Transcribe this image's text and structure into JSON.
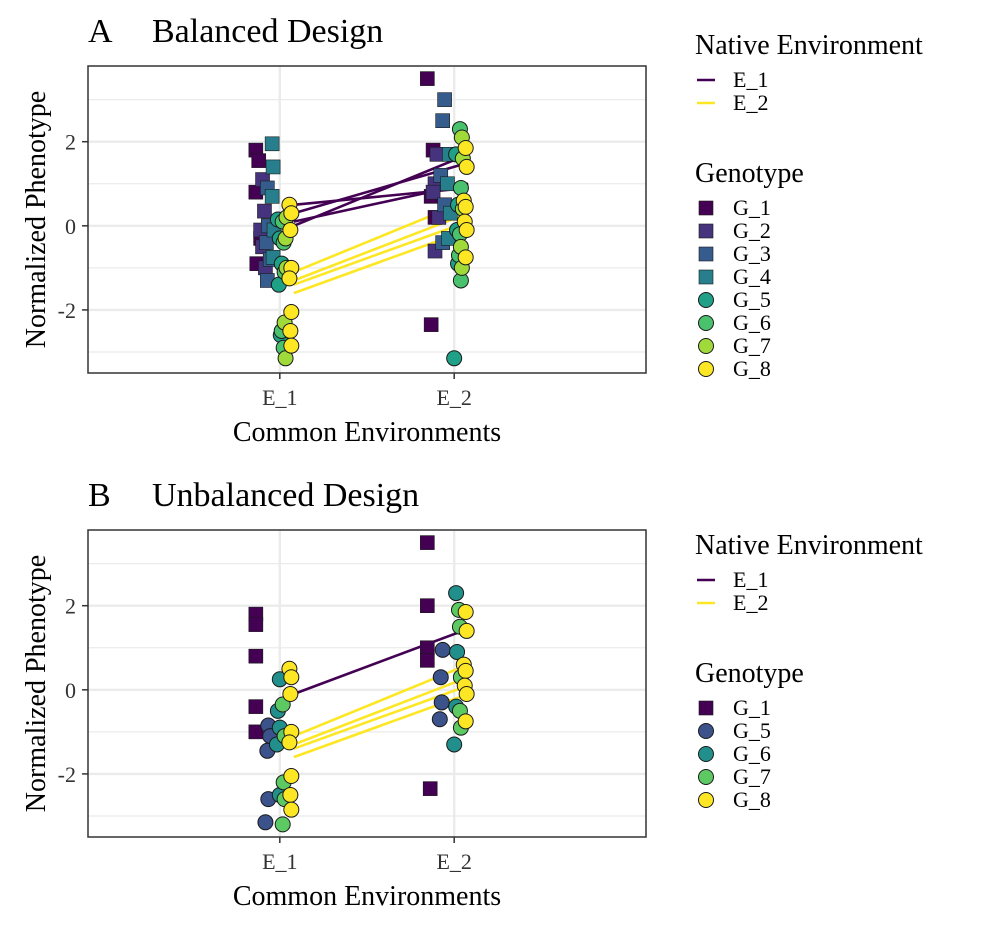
{
  "chart_data": [
    {
      "panel": "A",
      "title": "Balanced Design",
      "type": "scatter",
      "xlabel": "Common Environments",
      "ylabel": "Normalized Phenotype",
      "categories": [
        "E_1",
        "E_2"
      ],
      "ylim": [
        -3.5,
        3.8
      ],
      "yticks": [
        -2,
        0,
        2
      ],
      "grid": true,
      "legends": [
        {
          "title": "Native Environment",
          "entries": [
            {
              "label": "E_1",
              "color": "#440154",
              "kind": "line"
            },
            {
              "label": "E_2",
              "color": "#FDE725",
              "kind": "line"
            }
          ]
        },
        {
          "title": "Genotype",
          "entries": [
            {
              "label": "G_1",
              "color": "#440154",
              "shape": "square"
            },
            {
              "label": "G_2",
              "color": "#46337E",
              "shape": "square"
            },
            {
              "label": "G_3",
              "color": "#365C8D",
              "shape": "square"
            },
            {
              "label": "G_4",
              "color": "#277F8E",
              "shape": "square"
            },
            {
              "label": "G_5",
              "color": "#1FA187",
              "shape": "circle"
            },
            {
              "label": "G_6",
              "color": "#4AC16D",
              "shape": "circle"
            },
            {
              "label": "G_7",
              "color": "#9FDA3A",
              "shape": "circle"
            },
            {
              "label": "G_8",
              "color": "#FDE725",
              "shape": "circle"
            }
          ]
        }
      ],
      "lines": [
        {
          "native": "E_1",
          "color": "#440154",
          "y": [
            0.0,
            1.7
          ]
        },
        {
          "native": "E_1",
          "color": "#440154",
          "y": [
            0.1,
            1.0
          ]
        },
        {
          "native": "E_1",
          "color": "#440154",
          "y": [
            0.3,
            1.5
          ]
        },
        {
          "native": "E_1",
          "color": "#440154",
          "y": [
            0.5,
            0.9
          ]
        },
        {
          "native": "E_2",
          "color": "#FDE725",
          "y": [
            -1.1,
            0.6
          ]
        },
        {
          "native": "E_2",
          "color": "#FDE725",
          "y": [
            -1.3,
            0.3
          ]
        },
        {
          "native": "E_2",
          "color": "#FDE725",
          "y": [
            -1.4,
            0.1
          ]
        },
        {
          "native": "E_2",
          "color": "#FDE725",
          "y": [
            -1.6,
            -0.1
          ]
        }
      ],
      "series": [
        {
          "name": "G_1",
          "values": [
            [
              -0.25,
              1.8
            ],
            [
              -0.22,
              1.55
            ],
            [
              -0.25,
              0.8
            ],
            [
              -0.2,
              -0.3
            ],
            [
              -0.24,
              -0.9
            ],
            [
              -0.24,
              -2.35
            ],
            [
              -0.28,
              3.5
            ],
            [
              -0.22,
              1.8
            ],
            [
              -0.24,
              0.7
            ],
            [
              -0.2,
              0.2
            ]
          ]
        },
        {
          "name": "G_2",
          "values": [
            [
              -0.18,
              1.1
            ],
            [
              -0.16,
              0.35
            ],
            [
              -0.2,
              -0.1
            ],
            [
              -0.18,
              -0.5
            ],
            [
              -0.15,
              -1.0
            ],
            [
              -0.2,
              1.0
            ],
            [
              -0.18,
              1.7
            ],
            [
              -0.22,
              0.8
            ],
            [
              -0.16,
              0.2
            ],
            [
              -0.2,
              -0.6
            ]
          ]
        },
        {
          "name": "G_3",
          "values": [
            [
              -0.13,
              0.9
            ],
            [
              -0.12,
              0.0
            ],
            [
              -0.14,
              -0.4
            ],
            [
              -0.1,
              -0.8
            ],
            [
              -0.13,
              -1.3
            ],
            [
              -0.1,
              3.0
            ],
            [
              -0.12,
              2.5
            ],
            [
              -0.14,
              1.2
            ],
            [
              -0.1,
              0.5
            ],
            [
              -0.12,
              -0.4
            ]
          ]
        },
        {
          "name": "G_4",
          "values": [
            [
              -0.08,
              1.95
            ],
            [
              -0.07,
              1.4
            ],
            [
              -0.08,
              0.7
            ],
            [
              -0.06,
              -0.1
            ],
            [
              -0.07,
              -0.75
            ],
            [
              -0.05,
              1.7
            ],
            [
              -0.07,
              1.0
            ],
            [
              -0.04,
              0.3
            ],
            [
              -0.06,
              -0.3
            ]
          ]
        },
        {
          "name": "G_5",
          "values": [
            [
              -0.02,
              0.15
            ],
            [
              0.0,
              -0.3
            ],
            [
              0.02,
              -0.9
            ],
            [
              -0.01,
              -1.4
            ],
            [
              0.01,
              -2.6
            ],
            [
              0.0,
              -3.15
            ],
            [
              0.02,
              1.7
            ],
            [
              0.04,
              0.5
            ],
            [
              0.03,
              -0.1
            ],
            [
              0.04,
              -0.9
            ]
          ]
        },
        {
          "name": "G_6",
          "values": [
            [
              0.03,
              0.1
            ],
            [
              0.04,
              -0.4
            ],
            [
              0.05,
              -1.1
            ],
            [
              0.02,
              -2.5
            ],
            [
              0.04,
              -2.9
            ],
            [
              0.06,
              2.3
            ],
            [
              0.07,
              0.9
            ],
            [
              0.06,
              -0.2
            ],
            [
              0.05,
              -0.7
            ],
            [
              0.07,
              -1.3
            ]
          ]
        },
        {
          "name": "G_7",
          "values": [
            [
              0.07,
              0.2
            ],
            [
              0.06,
              -0.3
            ],
            [
              0.07,
              -1.0
            ],
            [
              0.05,
              -2.3
            ],
            [
              0.06,
              -3.15
            ],
            [
              0.08,
              2.1
            ],
            [
              0.09,
              1.6
            ],
            [
              0.09,
              0.4
            ],
            [
              0.07,
              -0.5
            ],
            [
              0.08,
              -1.0
            ]
          ]
        },
        {
          "name": "G_8",
          "values": [
            [
              0.1,
              0.5
            ],
            [
              0.12,
              0.3
            ],
            [
              0.11,
              -0.1
            ],
            [
              0.12,
              -1.0
            ],
            [
              0.1,
              -1.25
            ],
            [
              0.12,
              -2.05
            ],
            [
              0.11,
              -2.5
            ],
            [
              0.12,
              -2.85
            ],
            [
              0.12,
              1.85
            ],
            [
              0.13,
              1.4
            ],
            [
              0.1,
              0.6
            ],
            [
              0.12,
              0.45
            ],
            [
              0.11,
              0.1
            ],
            [
              0.13,
              -0.1
            ],
            [
              0.12,
              -0.75
            ]
          ]
        }
      ]
    },
    {
      "panel": "B",
      "title": "Unbalanced Design",
      "type": "scatter",
      "xlabel": "Common Environments",
      "ylabel": "Normalized Phenotype",
      "categories": [
        "E_1",
        "E_2"
      ],
      "ylim": [
        -3.5,
        3.8
      ],
      "yticks": [
        -2,
        0,
        2
      ],
      "grid": true,
      "legends": [
        {
          "title": "Native Environment",
          "entries": [
            {
              "label": "E_1",
              "color": "#440154",
              "kind": "line"
            },
            {
              "label": "E_2",
              "color": "#FDE725",
              "kind": "line"
            }
          ]
        },
        {
          "title": "Genotype",
          "entries": [
            {
              "label": "G_1",
              "color": "#440154",
              "shape": "square"
            },
            {
              "label": "G_5",
              "color": "#3B528B",
              "shape": "circle"
            },
            {
              "label": "G_6",
              "color": "#21908C",
              "shape": "circle"
            },
            {
              "label": "G_7",
              "color": "#5DC963",
              "shape": "circle"
            },
            {
              "label": "G_8",
              "color": "#FDE725",
              "shape": "circle"
            }
          ]
        }
      ],
      "lines": [
        {
          "native": "E_1",
          "color": "#440154",
          "y": [
            -0.1,
            1.45
          ]
        },
        {
          "native": "E_2",
          "color": "#FDE725",
          "y": [
            -1.1,
            0.6
          ]
        },
        {
          "native": "E_2",
          "color": "#FDE725",
          "y": [
            -1.3,
            0.3
          ]
        },
        {
          "native": "E_2",
          "color": "#FDE725",
          "y": [
            -1.4,
            0.1
          ]
        },
        {
          "native": "E_2",
          "color": "#FDE725",
          "y": [
            -1.6,
            -0.1
          ]
        }
      ],
      "series": [
        {
          "name": "G_1",
          "values": [
            [
              -0.25,
              1.8
            ],
            [
              -0.25,
              1.55
            ],
            [
              -0.25,
              0.8
            ],
            [
              -0.25,
              -0.4
            ],
            [
              -0.25,
              -1.0
            ],
            [
              -0.25,
              -2.35
            ],
            [
              -0.28,
              3.5
            ],
            [
              -0.28,
              2.0
            ],
            [
              -0.28,
              1.0
            ],
            [
              -0.28,
              0.7
            ]
          ]
        },
        {
          "name": "G_5",
          "values": [
            [
              -0.12,
              -0.85
            ],
            [
              -0.1,
              -1.1
            ],
            [
              -0.13,
              -1.45
            ],
            [
              -0.12,
              -2.6
            ],
            [
              -0.15,
              -3.15
            ],
            [
              -0.12,
              0.95
            ],
            [
              -0.14,
              0.3
            ],
            [
              -0.13,
              -0.3
            ],
            [
              -0.15,
              -0.7
            ]
          ]
        },
        {
          "name": "G_6",
          "values": [
            [
              0.0,
              0.25
            ],
            [
              -0.02,
              -0.5
            ],
            [
              0.0,
              -0.9
            ],
            [
              -0.03,
              -1.3
            ],
            [
              0.0,
              -2.5
            ],
            [
              0.02,
              2.3
            ],
            [
              0.03,
              0.9
            ],
            [
              0.02,
              -0.4
            ],
            [
              0.0,
              -1.3
            ]
          ]
        },
        {
          "name": "G_7",
          "values": [
            [
              0.03,
              -0.35
            ],
            [
              0.05,
              -1.1
            ],
            [
              0.04,
              -2.2
            ],
            [
              0.05,
              -2.6
            ],
            [
              0.03,
              -3.2
            ],
            [
              0.05,
              1.9
            ],
            [
              0.06,
              1.5
            ],
            [
              0.07,
              0.3
            ],
            [
              0.06,
              -0.5
            ],
            [
              0.07,
              -0.9
            ]
          ]
        },
        {
          "name": "G_8",
          "values": [
            [
              0.1,
              0.5
            ],
            [
              0.12,
              0.3
            ],
            [
              0.11,
              -0.1
            ],
            [
              0.12,
              -1.0
            ],
            [
              0.1,
              -1.25
            ],
            [
              0.12,
              -2.05
            ],
            [
              0.11,
              -2.5
            ],
            [
              0.12,
              -2.85
            ],
            [
              0.12,
              1.85
            ],
            [
              0.13,
              1.4
            ],
            [
              0.1,
              0.6
            ],
            [
              0.12,
              0.45
            ],
            [
              0.11,
              0.1
            ],
            [
              0.13,
              -0.1
            ],
            [
              0.12,
              -0.75
            ]
          ]
        }
      ]
    }
  ]
}
